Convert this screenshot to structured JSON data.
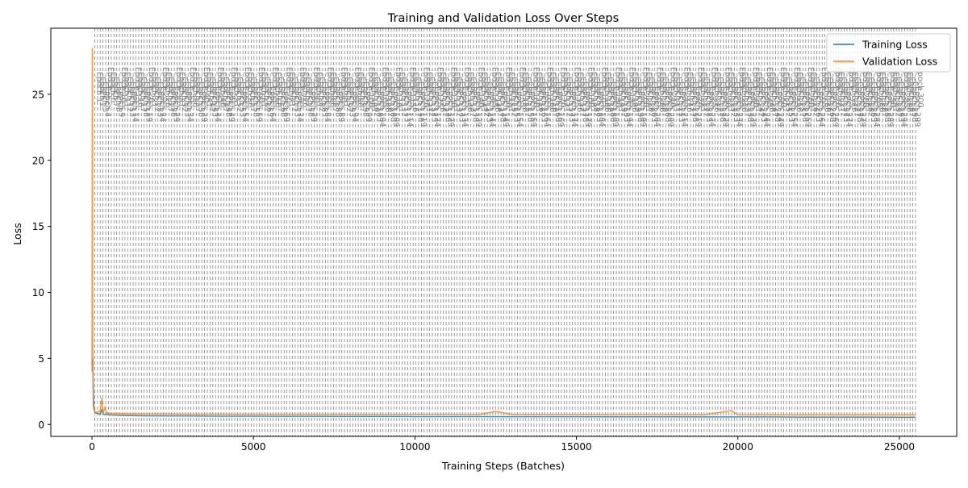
{
  "chart_data": {
    "type": "line",
    "title": "Training and Validation Loss Over Steps",
    "xlabel": "Training Steps (Batches)",
    "ylabel": "Loss",
    "xlim": [
      -1275,
      26775
    ],
    "ylim": [
      -0.9,
      30.0
    ],
    "xticks": [
      0,
      5000,
      10000,
      15000,
      20000,
      25000
    ],
    "yticks": [
      0,
      5,
      10,
      15,
      20,
      25
    ],
    "grid": false,
    "legend_position": "top-right",
    "series": [
      {
        "name": "Training Loss",
        "color": "#1f77b4",
        "x": [
          0,
          20,
          40,
          60,
          80,
          100,
          150,
          200,
          250,
          300,
          350,
          400,
          450,
          500,
          600,
          800,
          1000,
          1500,
          2000,
          3000,
          4000,
          5000,
          6000,
          7000,
          8000,
          9000,
          10000,
          11000,
          12000,
          13000,
          14000,
          15000,
          16000,
          17000,
          18000,
          19000,
          20000,
          21000,
          22000,
          23000,
          24000,
          25000,
          25500
        ],
        "y": [
          4.5,
          5.0,
          2.6,
          1.3,
          1.0,
          0.9,
          0.85,
          0.8,
          0.78,
          1.1,
          0.8,
          0.75,
          0.8,
          0.74,
          0.72,
          0.7,
          0.68,
          0.66,
          0.65,
          0.64,
          0.63,
          0.63,
          0.62,
          0.62,
          0.61,
          0.61,
          0.6,
          0.6,
          0.6,
          0.59,
          0.59,
          0.59,
          0.58,
          0.58,
          0.58,
          0.57,
          0.57,
          0.57,
          0.56,
          0.56,
          0.56,
          0.55,
          0.55
        ]
      },
      {
        "name": "Validation Loss",
        "color": "#ff7f0e",
        "x": [
          0,
          10,
          20,
          30,
          40,
          60,
          80,
          100,
          150,
          200,
          250,
          300,
          350,
          400,
          450,
          500,
          600,
          800,
          1000,
          1500,
          2000,
          3000,
          4000,
          5000,
          6000,
          7000,
          8000,
          9000,
          10000,
          11000,
          12000,
          12500,
          13000,
          14000,
          15000,
          16000,
          17000,
          18000,
          19000,
          19800,
          20000,
          21000,
          22000,
          23000,
          24000,
          25000,
          25500
        ],
        "y": [
          4.0,
          28.5,
          10.0,
          3.0,
          1.5,
          1.1,
          1.0,
          0.95,
          0.92,
          1.0,
          0.95,
          2.0,
          0.9,
          1.3,
          0.88,
          0.87,
          0.85,
          0.83,
          0.82,
          0.8,
          0.8,
          0.79,
          0.79,
          0.78,
          0.78,
          0.78,
          0.77,
          0.77,
          0.77,
          0.77,
          0.76,
          1.0,
          0.76,
          0.76,
          0.76,
          0.75,
          0.75,
          0.75,
          0.75,
          1.05,
          0.75,
          0.74,
          0.74,
          0.74,
          0.74,
          0.74,
          0.74
        ]
      }
    ],
    "epoch_markers": {
      "label_prefix": "Epoch",
      "count": 300,
      "first_step": 85,
      "step_interval": 85,
      "color": "#808080",
      "style": "dashed"
    }
  }
}
